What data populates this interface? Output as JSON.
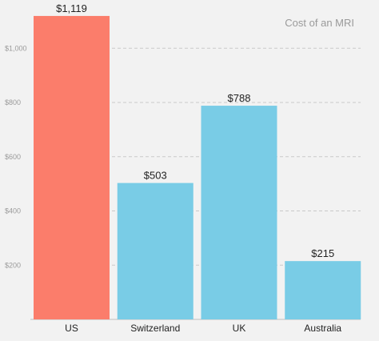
{
  "chart_data": {
    "type": "bar",
    "title": "Cost of an MRI",
    "categories": [
      "US",
      "Switzerland",
      "UK",
      "Australia"
    ],
    "values": [
      1119,
      503,
      788,
      215
    ],
    "value_labels": [
      "$1,119",
      "$503",
      "$788",
      "$215"
    ],
    "y_ticks": [
      200,
      400,
      600,
      800,
      1000
    ],
    "y_tick_labels": [
      "$200",
      "$400",
      "$600",
      "$800",
      "$1,000"
    ],
    "ylim": [
      0,
      1200
    ],
    "grid": true,
    "xlabel": "",
    "ylabel": "",
    "bar_colors": [
      "#fb7d6b",
      "#79cce6",
      "#79cce6",
      "#79cce6"
    ]
  }
}
